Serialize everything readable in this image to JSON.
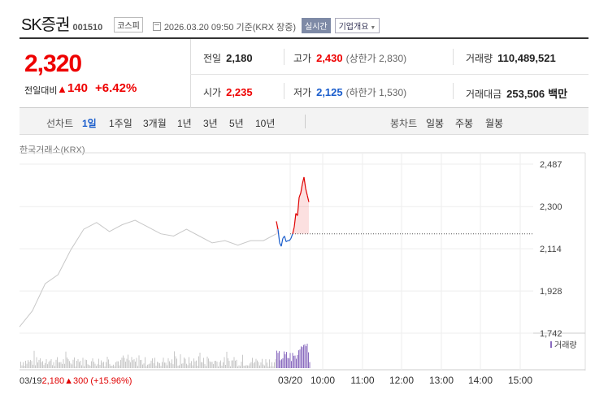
{
  "header": {
    "name": "SK증권",
    "code": "001510",
    "market": "코스피",
    "datetime": "2026.03.20 09:50 기준(KRX 장중)",
    "realtime": "실시간",
    "company_info": "기업개요"
  },
  "price": {
    "current": "2,320",
    "change_label": "전일대비",
    "change_value": "140",
    "change_rate": "+6.42%"
  },
  "quotes": {
    "prev_close_label": "전일",
    "prev_close": "2,180",
    "high_label": "고가",
    "high": "2,430",
    "upper_limit_label": "상한가",
    "upper_limit": "2,830",
    "volume_label": "거래량",
    "volume": "110,489,521",
    "open_label": "시가",
    "open": "2,235",
    "low_label": "저가",
    "low": "2,125",
    "lower_limit_label": "하한가",
    "lower_limit": "1,530",
    "amount_label": "거래대금",
    "amount": "253,506",
    "amount_unit": "백만"
  },
  "tabs": {
    "line_chart_label": "선차트",
    "line_periods": [
      "1일",
      "1주일",
      "3개월",
      "1년",
      "3년",
      "5년",
      "10년"
    ],
    "active_period": "1일",
    "candle_chart_label": "봉차트",
    "candle_periods": [
      "일봉",
      "주봉",
      "월봉"
    ]
  },
  "chart": {
    "source_label": "한국거래소(KRX)",
    "volume_legend": "거래량",
    "prev_date": "03/19",
    "prev_price": "2,180",
    "prev_change": "300",
    "prev_rate": "(+15.96%)",
    "colors": {
      "up": "#e00000",
      "down": "#1a5dcc",
      "prev": "#c8c8c8"
    }
  },
  "chart_data": {
    "type": "line",
    "title": "",
    "y_ticks": [
      "2,487",
      "2,300",
      "2,114",
      "1,928",
      "1,742"
    ],
    "ylim": [
      1742,
      2487
    ],
    "x_ticks": [
      "03/20",
      "10:00",
      "11:00",
      "12:00",
      "13:00",
      "14:00",
      "15:00"
    ],
    "reference_price": 2180,
    "series": [
      {
        "name": "",
        "x": [
          0,
          0.05,
          0.1,
          0.15,
          0.2,
          0.25,
          0.3,
          0.35,
          0.4,
          0.45,
          0.5,
          0.55,
          0.6,
          0.65,
          0.7,
          0.75,
          0.8,
          0.85,
          0.9,
          0.95,
          1
        ],
        "y": [
          1770,
          1840,
          1960,
          2000,
          2110,
          2200,
          2230,
          2190,
          2220,
          2240,
          2210,
          2180,
          2170,
          2200,
          2170,
          2140,
          2150,
          2130,
          2150,
          2150,
          2180
        ]
      },
      {
        "name": "",
        "x": [
          1,
          2,
          3,
          4,
          5,
          6,
          7,
          8,
          9,
          10,
          11,
          12,
          13,
          14,
          15,
          16,
          17,
          18,
          19,
          20,
          21
        ],
        "y": [
          2235,
          2200,
          2140,
          2125,
          2160,
          2170,
          2145,
          2150,
          2150,
          2160,
          2180,
          2210,
          2270,
          2260,
          2340,
          2360,
          2400,
          2430,
          2380,
          2350,
          2320
        ]
      }
    ]
  }
}
